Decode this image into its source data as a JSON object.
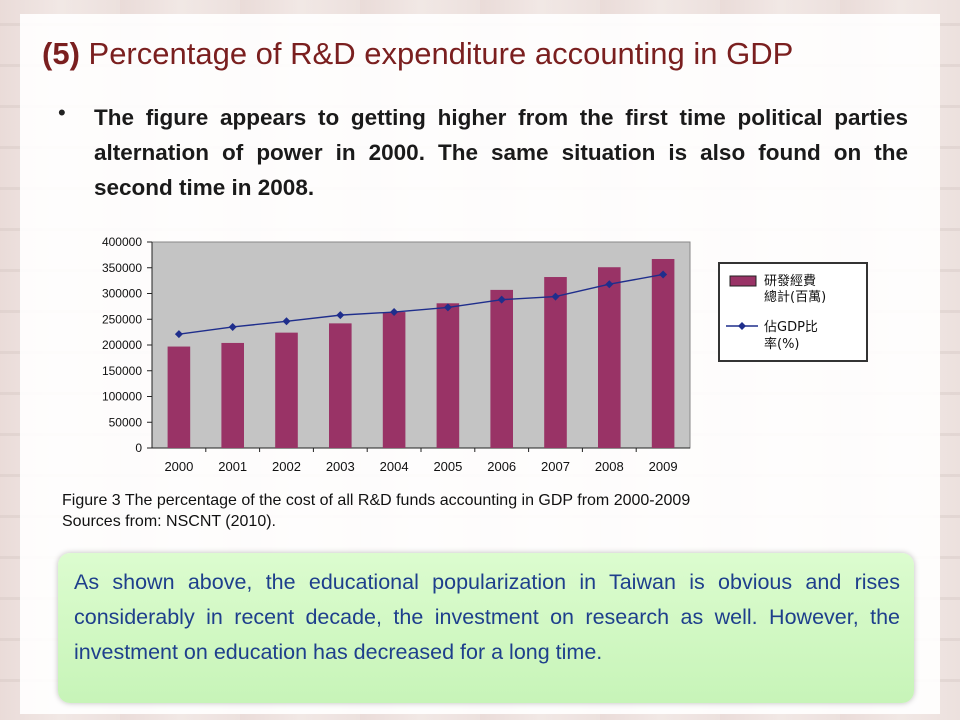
{
  "title": {
    "number": "(5)",
    "text": "Percentage of R&D expenditure accounting in GDP"
  },
  "bullet": {
    "text": "The figure appears to getting higher from the first time political parties alternation of power in 2000. The same situation is also found on the second time in 2008."
  },
  "chart_data": {
    "type": "bar",
    "categories": [
      "2000",
      "2001",
      "2002",
      "2003",
      "2004",
      "2005",
      "2006",
      "2007",
      "2008",
      "2009"
    ],
    "series": [
      {
        "name": "研發經費總計(百萬)",
        "kind": "bar",
        "values": [
          197000,
          204000,
          224000,
          242000,
          264000,
          281000,
          307000,
          332000,
          351000,
          367000
        ],
        "color": "#993366"
      },
      {
        "name": "佔GDP比率(%)",
        "kind": "line",
        "values": [
          221000,
          235000,
          246000,
          258000,
          264000,
          273000,
          288000,
          294000,
          318000,
          337000
        ],
        "color": "#1f2e8c"
      }
    ],
    "ylim": [
      0,
      400000
    ],
    "yticks": [
      "400000",
      "350000",
      "300000",
      "250000",
      "200000",
      "150000",
      "100000",
      "50000",
      "0"
    ],
    "grid": false,
    "legend": "right"
  },
  "legend": {
    "bar_label_1": "研發經費",
    "bar_label_2": "總計(百萬)",
    "line_label_1": "佔GDP比",
    "line_label_2": "率(%)"
  },
  "caption": {
    "line1": "Figure 3 The percentage of the cost of all R&D funds accounting in GDP from 2000-2009",
    "line2": "Sources from: NSCNT (2010)."
  },
  "note": {
    "text": "As shown above, the educational popularization in Taiwan is obvious and rises considerably in recent decade, the investment on research as well. However, the investment on education has decreased for a long time."
  }
}
